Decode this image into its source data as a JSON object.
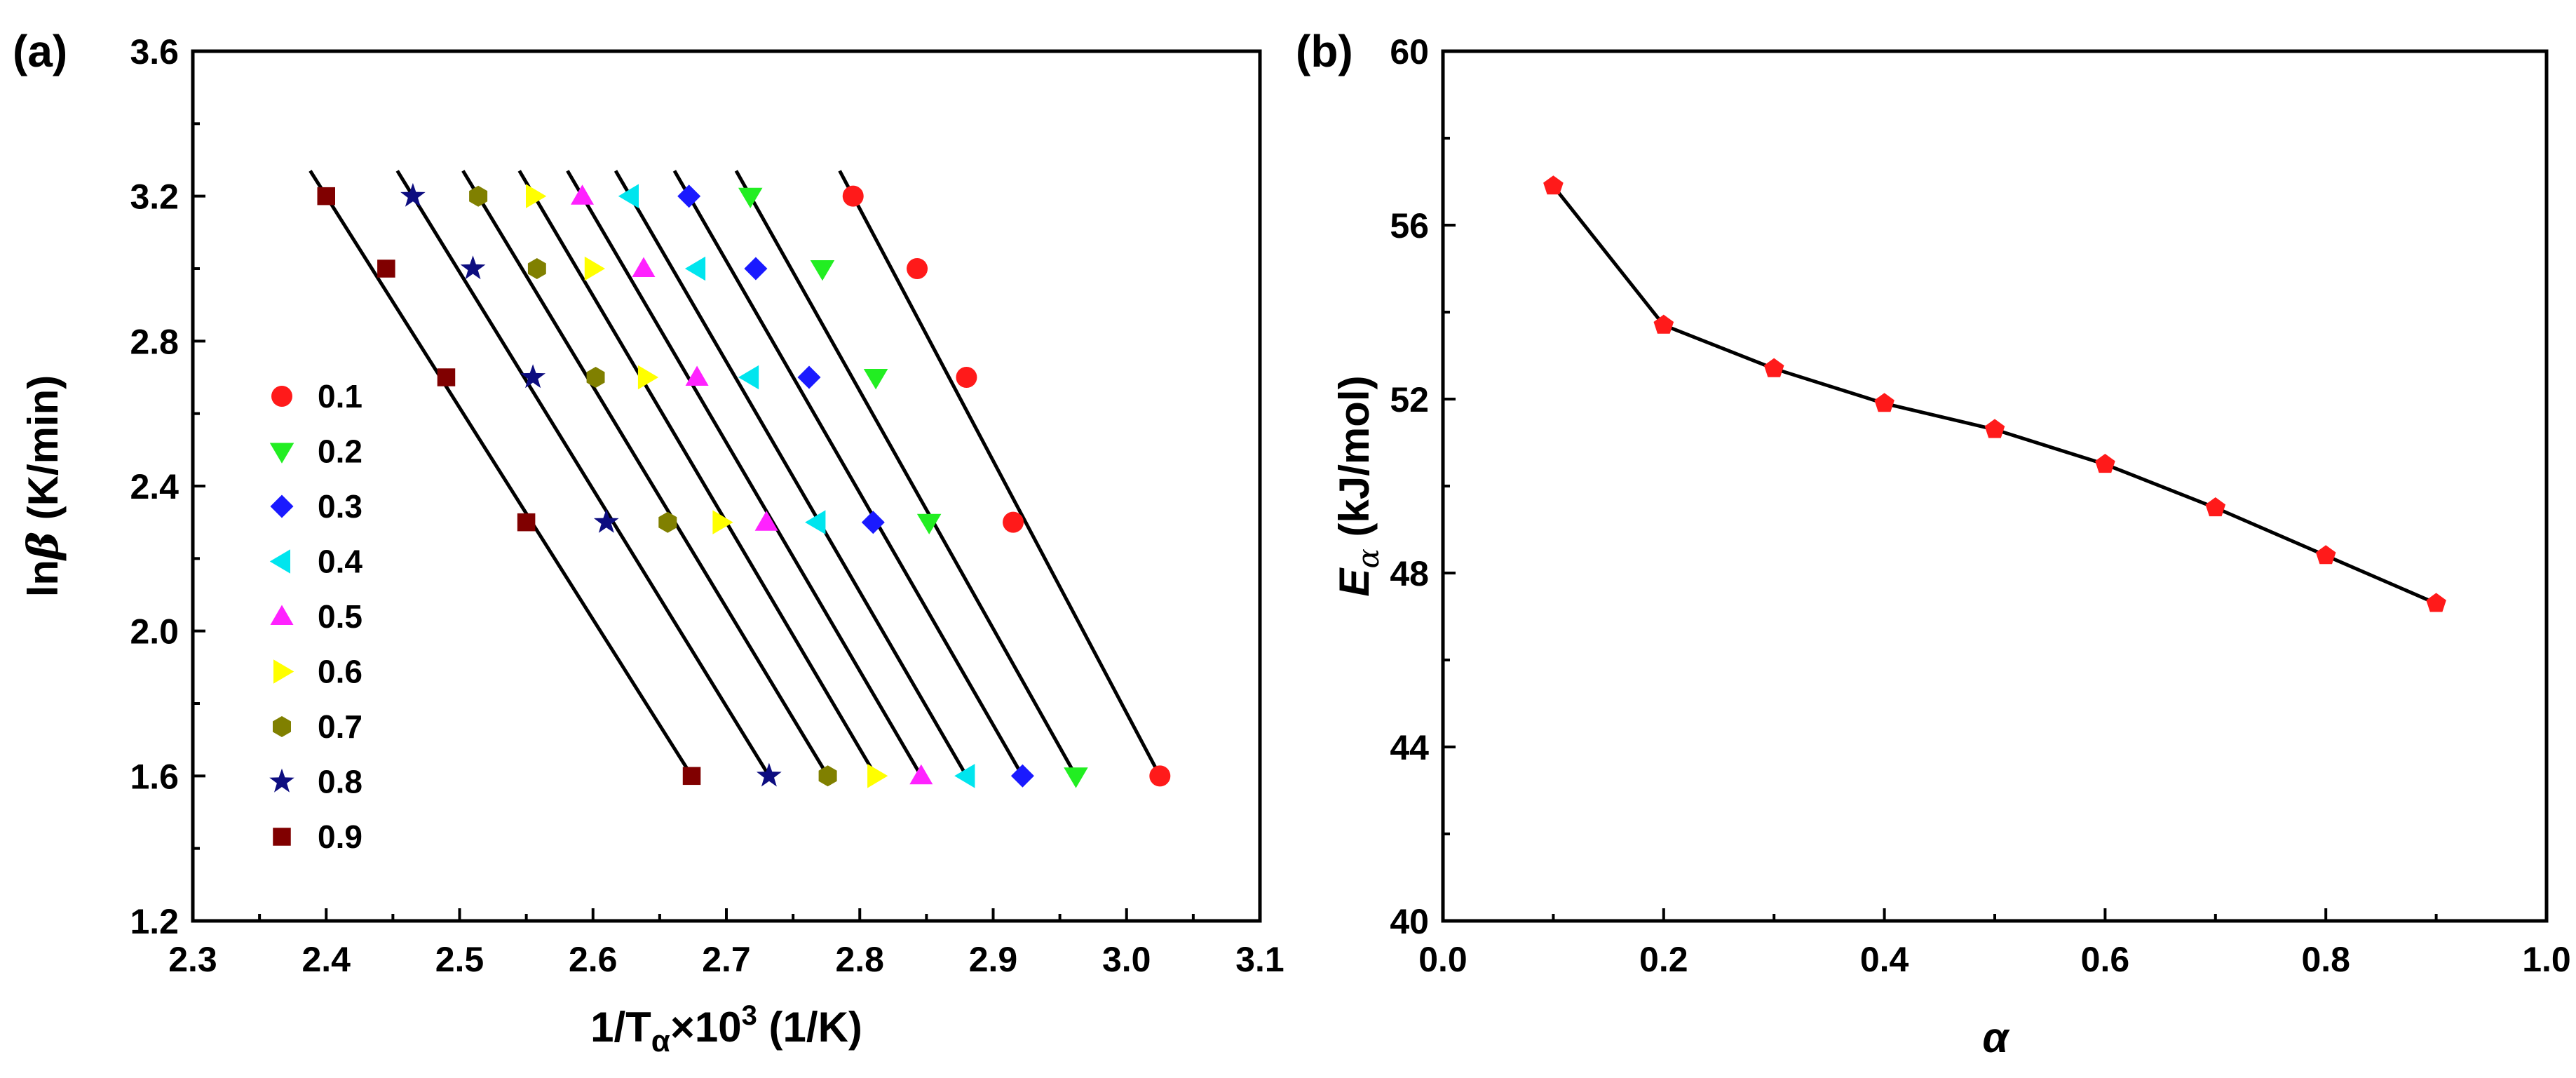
{
  "chart_data": [
    {
      "panel": "(a)",
      "type": "scatter",
      "xlabel": {
        "main": "1/T",
        "sub": "α",
        "mid": "×10",
        "sup": "3",
        "tail": " (1/K)"
      },
      "ylabel": {
        "pre": "ln",
        "sym": "β",
        "tail": " (K/min)"
      },
      "xlim": [
        2.3,
        3.1
      ],
      "ylim": [
        1.2,
        3.6
      ],
      "xticks": [
        "2.3",
        "2.4",
        "2.5",
        "2.6",
        "2.7",
        "2.8",
        "2.9",
        "3.0",
        "3.1"
      ],
      "yticks": [
        "1.2",
        "1.6",
        "2.0",
        "2.4",
        "2.8",
        "3.2",
        "3.6"
      ],
      "y_levels": [
        1.6,
        2.3,
        2.7,
        3.0,
        3.2
      ],
      "series": [
        {
          "name": "0.1",
          "color": "#ff1a1a",
          "marker": "circle",
          "x": [
            3.025,
            2.915,
            2.88,
            2.843,
            2.795
          ]
        },
        {
          "name": "0.2",
          "color": "#22ee22",
          "marker": "triangle-down",
          "x": [
            2.962,
            2.852,
            2.812,
            2.772,
            2.718
          ]
        },
        {
          "name": "0.3",
          "color": "#1a1aff",
          "marker": "diamond",
          "x": [
            2.922,
            2.81,
            2.762,
            2.722,
            2.672
          ]
        },
        {
          "name": "0.4",
          "color": "#00e5ee",
          "marker": "triangle-left",
          "x": [
            2.88,
            2.768,
            2.718,
            2.678,
            2.628
          ]
        },
        {
          "name": "0.5",
          "color": "#ff22ff",
          "marker": "triangle-up",
          "x": [
            2.846,
            2.73,
            2.678,
            2.638,
            2.592
          ]
        },
        {
          "name": "0.6",
          "color": "#ffff00",
          "marker": "triangle-right",
          "x": [
            2.812,
            2.696,
            2.64,
            2.6,
            2.556
          ]
        },
        {
          "name": "0.7",
          "color": "#808000",
          "marker": "hexagon",
          "x": [
            2.776,
            2.656,
            2.602,
            2.558,
            2.514
          ]
        },
        {
          "name": "0.8",
          "color": "#0d0d80",
          "marker": "star",
          "x": [
            2.732,
            2.61,
            2.555,
            2.51,
            2.465
          ]
        },
        {
          "name": "0.9",
          "color": "#800000",
          "marker": "square",
          "x": [
            2.674,
            2.55,
            2.49,
            2.445,
            2.4
          ]
        }
      ],
      "fit_lines": [
        {
          "name": "0.1",
          "x": [
            3.025,
            2.795
          ]
        },
        {
          "name": "0.2",
          "x": [
            2.962,
            2.718
          ]
        },
        {
          "name": "0.3",
          "x": [
            2.922,
            2.672
          ]
        },
        {
          "name": "0.4",
          "x": [
            2.88,
            2.628
          ]
        },
        {
          "name": "0.5",
          "x": [
            2.846,
            2.592
          ]
        },
        {
          "name": "0.6",
          "x": [
            2.812,
            2.556
          ]
        },
        {
          "name": "0.7",
          "x": [
            2.776,
            2.514
          ]
        },
        {
          "name": "0.8",
          "x": [
            2.732,
            2.465
          ]
        },
        {
          "name": "0.9",
          "x": [
            2.674,
            2.4
          ]
        }
      ],
      "fit_y": [
        1.6,
        3.27
      ],
      "legend_position": "left"
    },
    {
      "panel": "(b)",
      "type": "line",
      "xlabel": {
        "sym": "α"
      },
      "ylabel": {
        "main": "E",
        "sub": "α",
        "tail": " (kJ/mol)"
      },
      "xlim": [
        0.0,
        1.0
      ],
      "ylim": [
        40,
        60
      ],
      "xticks": [
        "0.0",
        "0.2",
        "0.4",
        "0.6",
        "0.8",
        "1.0"
      ],
      "yticks": [
        "40",
        "44",
        "48",
        "52",
        "56",
        "60"
      ],
      "color": "#ff1a1a",
      "marker": "pentagon",
      "x": [
        0.1,
        0.2,
        0.3,
        0.4,
        0.5,
        0.6,
        0.7,
        0.8,
        0.9
      ],
      "y": [
        56.9,
        53.7,
        52.7,
        51.9,
        51.3,
        50.5,
        49.5,
        48.4,
        47.3
      ]
    }
  ]
}
